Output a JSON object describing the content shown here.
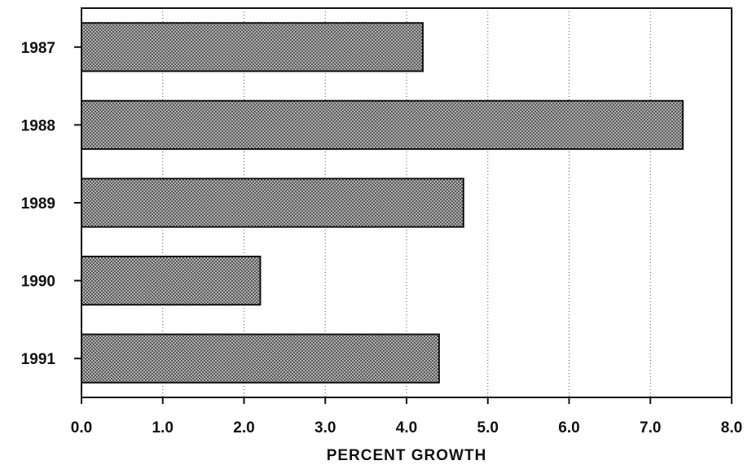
{
  "chart_data": {
    "type": "bar",
    "orientation": "horizontal",
    "title": "",
    "xlabel": "PERCENT GROWTH",
    "ylabel": "",
    "categories": [
      "1987",
      "1988",
      "1989",
      "1990",
      "1991"
    ],
    "values": [
      4.2,
      7.4,
      4.7,
      2.2,
      4.4
    ],
    "xlim": [
      0,
      8
    ],
    "x_ticks": [
      "0.0",
      "1.0",
      "2.0",
      "3.0",
      "4.0",
      "5.0",
      "6.0",
      "7.0",
      "8.0"
    ],
    "grid": "vertical dotted lines",
    "bar_color": "#8a8a8a",
    "bar_edge_color": "#111111"
  }
}
